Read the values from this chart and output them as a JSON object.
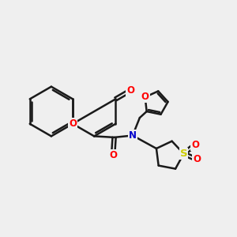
{
  "bg_color": "#efefef",
  "bond_color": "#1a1a1a",
  "bond_width": 1.8,
  "atom_colors": {
    "O": "#ff0000",
    "N": "#0000cc",
    "S": "#cccc00",
    "C": "#1a1a1a"
  },
  "font_size": 8.5,
  "figsize": [
    3.0,
    3.0
  ],
  "dpi": 100,
  "xlim": [
    0,
    10
  ],
  "ylim": [
    0,
    10
  ]
}
